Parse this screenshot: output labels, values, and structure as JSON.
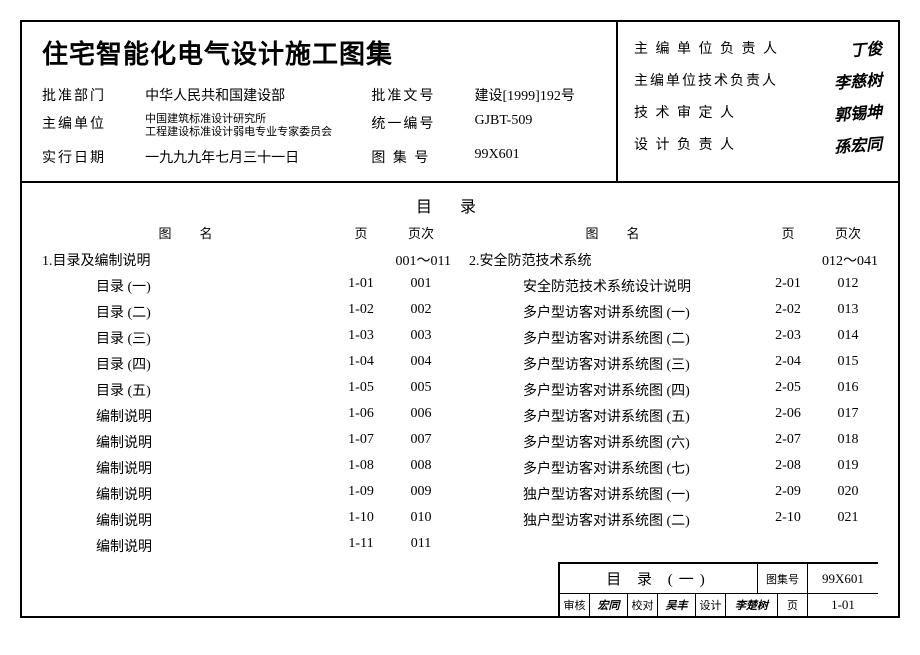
{
  "title": "住宅智能化电气设计施工图集",
  "header_left": {
    "rows": [
      {
        "label": "批准部门",
        "value": "中华人民共和国建设部",
        "label2": "批准文号",
        "value2": "建设[1999]192号"
      },
      {
        "label": "主编单位",
        "value": "中国建筑标准设计研究所\n工程建设标准设计弱电专业专家委员会",
        "small": true,
        "label2": "统一编号",
        "value2": "GJBT-509"
      },
      {
        "label": "实行日期",
        "value": "一九九九年七月三十一日",
        "label2": "图 集 号",
        "value2": "99X601"
      }
    ]
  },
  "header_right": {
    "rows": [
      {
        "label": "主 编 单 位 负 责 人",
        "sig": "丁俊"
      },
      {
        "label": "主编单位技术负责人",
        "sig": "李慈树"
      },
      {
        "label": "技 术 审 定 人",
        "sig": "郭锡坤"
      },
      {
        "label": "设 计 负 责 人",
        "sig": "孫宏同"
      }
    ]
  },
  "toc_title": "目录",
  "col_headers": {
    "name": "图名",
    "page": "页",
    "seq": "页次"
  },
  "left_section": {
    "name": "1.目录及编制说明",
    "range": "001～011"
  },
  "left_rows": [
    {
      "name": "目录 (一)",
      "page": "1-01",
      "seq": "001"
    },
    {
      "name": "目录 (二)",
      "page": "1-02",
      "seq": "002"
    },
    {
      "name": "目录 (三)",
      "page": "1-03",
      "seq": "003"
    },
    {
      "name": "目录 (四)",
      "page": "1-04",
      "seq": "004"
    },
    {
      "name": "目录 (五)",
      "page": "1-05",
      "seq": "005"
    },
    {
      "name": "编制说明",
      "page": "1-06",
      "seq": "006"
    },
    {
      "name": "编制说明",
      "page": "1-07",
      "seq": "007"
    },
    {
      "name": "编制说明",
      "page": "1-08",
      "seq": "008"
    },
    {
      "name": "编制说明",
      "page": "1-09",
      "seq": "009"
    },
    {
      "name": "编制说明",
      "page": "1-10",
      "seq": "010"
    },
    {
      "name": "编制说明",
      "page": "1-11",
      "seq": "011"
    }
  ],
  "right_section": {
    "name": "2.安全防范技术系统",
    "range": "012～041"
  },
  "right_rows": [
    {
      "name": "安全防范技术系统设计说明",
      "page": "2-01",
      "seq": "012"
    },
    {
      "name": "多户型访客对讲系统图 (一)",
      "page": "2-02",
      "seq": "013"
    },
    {
      "name": "多户型访客对讲系统图 (二)",
      "page": "2-03",
      "seq": "014"
    },
    {
      "name": "多户型访客对讲系统图 (三)",
      "page": "2-04",
      "seq": "015"
    },
    {
      "name": "多户型访客对讲系统图 (四)",
      "page": "2-05",
      "seq": "016"
    },
    {
      "name": "多户型访客对讲系统图 (五)",
      "page": "2-06",
      "seq": "017"
    },
    {
      "name": "多户型访客对讲系统图 (六)",
      "page": "2-07",
      "seq": "018"
    },
    {
      "name": "多户型访客对讲系统图 (七)",
      "page": "2-08",
      "seq": "019"
    },
    {
      "name": "独户型访客对讲系统图 (一)",
      "page": "2-09",
      "seq": "020"
    },
    {
      "name": "独户型访客对讲系统图 (二)",
      "page": "2-10",
      "seq": "021"
    }
  ],
  "footer": {
    "title": "目 录 (一)",
    "atlas_label": "图集号",
    "atlas_no": "99X601",
    "review_label": "审核",
    "review_sig": "宏同",
    "check_label": "校对",
    "check_sig": "吴丰",
    "design_label": "设计",
    "design_sig": "李楚树",
    "page_label": "页",
    "page_no": "1-01"
  }
}
